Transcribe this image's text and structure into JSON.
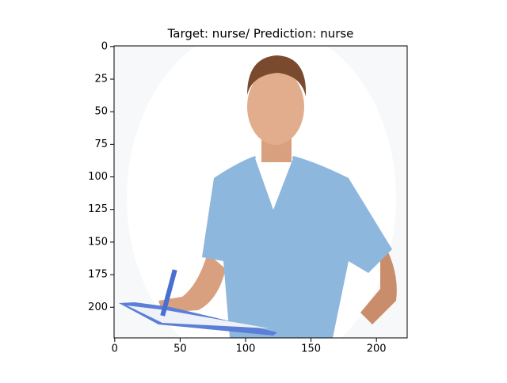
{
  "chart_data": {
    "type": "image",
    "title": "Target: nurse/ Prediction: nurse",
    "xlim": [
      -0.5,
      223.5
    ],
    "ylim": [
      223.5,
      -0.5
    ],
    "xticks": [
      0,
      50,
      100,
      150,
      200
    ],
    "yticks": [
      0,
      25,
      50,
      75,
      100,
      125,
      150,
      175,
      200
    ]
  }
}
